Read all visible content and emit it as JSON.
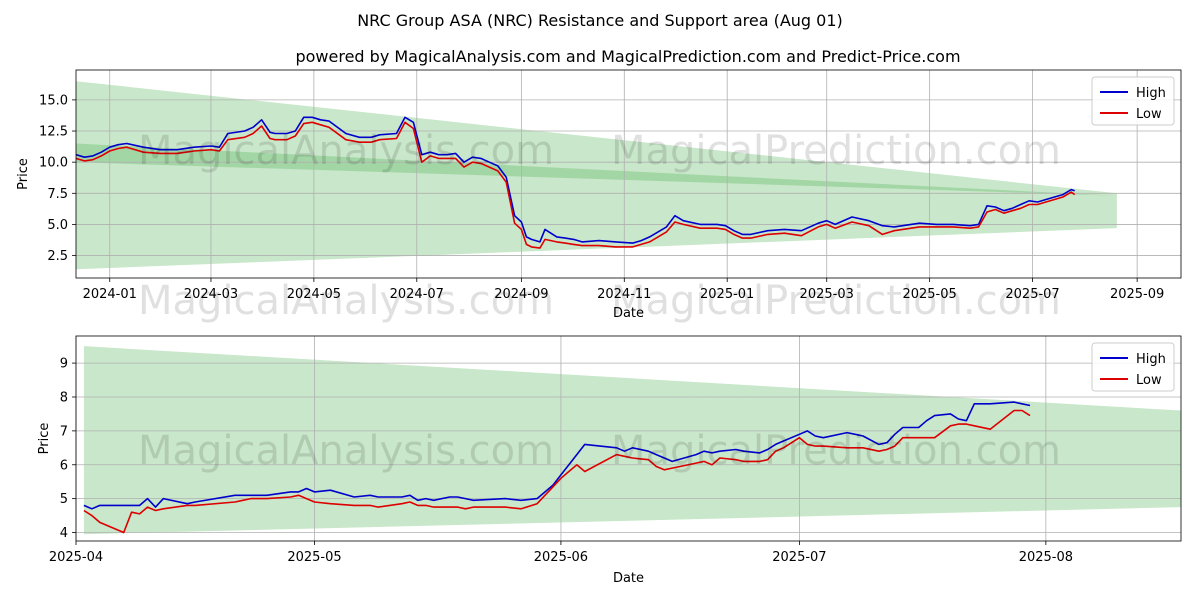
{
  "header": {
    "title": "NRC Group ASA (NRC) Resistance and Support area (Aug 01)",
    "subtitle": "powered by MagicalAnalysis.com and MagicalPrediction.com and Predict-Price.com"
  },
  "watermarks": [
    "MagicalAnalysis.com",
    "MagicalPrediction.com"
  ],
  "colors": {
    "high": "#0000cc",
    "low": "#dd0000",
    "band": "#4caf50",
    "grid": "#b0b0b0"
  },
  "chart_data": [
    {
      "type": "line",
      "id": "top",
      "xlabel": "Date",
      "ylabel": "Price",
      "xlim": [
        0,
        655
      ],
      "ylim": [
        0.7,
        17.4
      ],
      "grid": true,
      "legend": {
        "position": "top-right",
        "entries": [
          "High",
          "Low"
        ]
      },
      "xticks": [
        {
          "label": "2024-01",
          "pos": 20
        },
        {
          "label": "2024-03",
          "pos": 80
        },
        {
          "label": "2024-05",
          "pos": 141
        },
        {
          "label": "2024-07",
          "pos": 202
        },
        {
          "label": "2024-09",
          "pos": 264
        },
        {
          "label": "2024-11",
          "pos": 325
        },
        {
          "label": "2025-01",
          "pos": 386
        },
        {
          "label": "2025-03",
          "pos": 445
        },
        {
          "label": "2025-05",
          "pos": 506
        },
        {
          "label": "2025-07",
          "pos": 567
        },
        {
          "label": "2025-09",
          "pos": 629
        }
      ],
      "yticks": [
        2.5,
        5.0,
        7.5,
        10.0,
        12.5,
        15.0
      ],
      "bands": [
        {
          "x": [
            0,
            617
          ],
          "top": [
            16.5,
            7.5
          ],
          "bottom": [
            10.0,
            7.3
          ]
        },
        {
          "x": [
            0,
            617
          ],
          "top": [
            11.5,
            7.3
          ],
          "bottom": [
            1.4,
            4.7
          ]
        }
      ],
      "series": [
        {
          "name": "High",
          "x": [
            0,
            5,
            10,
            15,
            20,
            25,
            30,
            40,
            50,
            55,
            60,
            70,
            80,
            85,
            90,
            100,
            105,
            110,
            115,
            118,
            125,
            130,
            135,
            140,
            145,
            150,
            160,
            168,
            175,
            180,
            190,
            195,
            200,
            205,
            210,
            215,
            220,
            225,
            230,
            235,
            240,
            245,
            250,
            255,
            260,
            264,
            267,
            270,
            275,
            278,
            285,
            290,
            295,
            300,
            310,
            320,
            330,
            335,
            340,
            350,
            355,
            360,
            370,
            380,
            385,
            390,
            395,
            400,
            410,
            420,
            430,
            440,
            445,
            450,
            460,
            470,
            478,
            485,
            490,
            500,
            510,
            520,
            530,
            535,
            540,
            545,
            550,
            555,
            560,
            565,
            570,
            575,
            580,
            585,
            590,
            592
          ],
          "values": [
            10.6,
            10.4,
            10.5,
            10.8,
            11.2,
            11.4,
            11.5,
            11.2,
            11.0,
            11.0,
            11.0,
            11.2,
            11.3,
            11.2,
            12.3,
            12.5,
            12.8,
            13.4,
            12.4,
            12.3,
            12.3,
            12.5,
            13.6,
            13.6,
            13.4,
            13.3,
            12.3,
            12.0,
            12.0,
            12.2,
            12.3,
            13.6,
            13.2,
            10.6,
            10.8,
            10.6,
            10.6,
            10.7,
            10.0,
            10.4,
            10.3,
            10.0,
            9.7,
            8.8,
            5.7,
            5.2,
            4.0,
            3.8,
            3.6,
            4.6,
            4.0,
            3.9,
            3.8,
            3.6,
            3.7,
            3.6,
            3.5,
            3.7,
            4.0,
            4.8,
            5.7,
            5.3,
            5.0,
            5.0,
            4.9,
            4.5,
            4.2,
            4.2,
            4.5,
            4.6,
            4.5,
            5.1,
            5.3,
            5.0,
            5.6,
            5.3,
            4.9,
            4.8,
            4.9,
            5.1,
            5.0,
            5.0,
            4.9,
            5.0,
            6.5,
            6.4,
            6.1,
            6.3,
            6.6,
            6.9,
            6.8,
            7.0,
            7.2,
            7.4,
            7.8,
            7.7
          ]
        },
        {
          "name": "Low",
          "x": [
            0,
            5,
            10,
            15,
            20,
            25,
            30,
            40,
            50,
            55,
            60,
            70,
            80,
            85,
            90,
            100,
            105,
            110,
            115,
            118,
            125,
            130,
            135,
            140,
            145,
            150,
            160,
            168,
            175,
            180,
            190,
            195,
            200,
            205,
            210,
            215,
            220,
            225,
            230,
            235,
            240,
            245,
            250,
            255,
            260,
            264,
            267,
            270,
            275,
            278,
            285,
            290,
            295,
            300,
            310,
            320,
            330,
            335,
            340,
            350,
            355,
            360,
            370,
            380,
            385,
            390,
            395,
            400,
            410,
            420,
            430,
            440,
            445,
            450,
            460,
            470,
            478,
            485,
            490,
            500,
            510,
            520,
            530,
            535,
            540,
            545,
            550,
            555,
            560,
            565,
            570,
            575,
            580,
            585,
            590,
            592
          ],
          "values": [
            10.3,
            10.1,
            10.2,
            10.5,
            10.9,
            11.1,
            11.2,
            10.8,
            10.7,
            10.7,
            10.7,
            10.9,
            11.0,
            10.9,
            11.8,
            12.0,
            12.3,
            12.9,
            11.9,
            11.8,
            11.8,
            12.1,
            13.1,
            13.2,
            13.0,
            12.8,
            11.8,
            11.6,
            11.6,
            11.8,
            11.9,
            13.2,
            12.7,
            10.0,
            10.5,
            10.3,
            10.3,
            10.3,
            9.6,
            10.0,
            9.9,
            9.6,
            9.3,
            8.4,
            5.1,
            4.6,
            3.4,
            3.2,
            3.1,
            3.8,
            3.6,
            3.5,
            3.4,
            3.3,
            3.3,
            3.2,
            3.2,
            3.4,
            3.6,
            4.4,
            5.2,
            5.0,
            4.7,
            4.7,
            4.6,
            4.2,
            3.9,
            3.9,
            4.2,
            4.3,
            4.1,
            4.8,
            5.0,
            4.7,
            5.2,
            4.9,
            4.2,
            4.5,
            4.6,
            4.8,
            4.8,
            4.8,
            4.7,
            4.8,
            6.0,
            6.2,
            5.9,
            6.1,
            6.3,
            6.6,
            6.6,
            6.8,
            7.0,
            7.2,
            7.6,
            7.4
          ]
        }
      ]
    },
    {
      "type": "line",
      "id": "bottom",
      "xlabel": "Date",
      "ylabel": "Price",
      "xlim": [
        0,
        139
      ],
      "ylim": [
        3.75,
        9.8
      ],
      "grid": true,
      "legend": {
        "position": "top-right",
        "entries": [
          "High",
          "Low"
        ]
      },
      "xticks": [
        {
          "label": "2025-04",
          "pos": 0
        },
        {
          "label": "2025-05",
          "pos": 30
        },
        {
          "label": "2025-06",
          "pos": 61
        },
        {
          "label": "2025-07",
          "pos": 91
        },
        {
          "label": "2025-08",
          "pos": 122
        }
      ],
      "yticks": [
        4,
        5,
        6,
        7,
        8,
        9
      ],
      "bands": [
        {
          "x": [
            1,
            139
          ],
          "top": [
            9.5,
            7.6
          ],
          "bottom": [
            8.7,
            7.4
          ]
        },
        {
          "x": [
            1,
            139
          ],
          "top": [
            8.7,
            7.4
          ],
          "bottom": [
            3.95,
            4.75
          ]
        }
      ],
      "series": [
        {
          "name": "High",
          "x": [
            1,
            2,
            3,
            5,
            6,
            7,
            8,
            9,
            10,
            11,
            14,
            15,
            20,
            21,
            22,
            24,
            27,
            28,
            29,
            30,
            32,
            35,
            37,
            38,
            41,
            42,
            43,
            44,
            45,
            47,
            48,
            49,
            50,
            54,
            56,
            58,
            60,
            61,
            62,
            63,
            64,
            68,
            69,
            70,
            72,
            73,
            74,
            75,
            78,
            79,
            80,
            81,
            83,
            84,
            86,
            87,
            88,
            89,
            91,
            92,
            93,
            94,
            97,
            98,
            99,
            101,
            102,
            103,
            104,
            106,
            107,
            108,
            110,
            111,
            112,
            113,
            115,
            118,
            119,
            120
          ],
          "values": [
            4.8,
            4.7,
            4.8,
            4.8,
            4.8,
            4.8,
            4.8,
            5.0,
            4.75,
            5.0,
            4.85,
            4.9,
            5.1,
            5.1,
            5.1,
            5.1,
            5.2,
            5.2,
            5.3,
            5.2,
            5.25,
            5.05,
            5.1,
            5.05,
            5.05,
            5.1,
            4.95,
            5.0,
            4.95,
            5.05,
            5.05,
            5.0,
            4.95,
            5.0,
            4.95,
            5.0,
            5.4,
            5.7,
            6.0,
            6.3,
            6.6,
            6.5,
            6.4,
            6.5,
            6.4,
            6.3,
            6.2,
            6.1,
            6.3,
            6.4,
            6.35,
            6.4,
            6.45,
            6.4,
            6.35,
            6.45,
            6.6,
            6.7,
            6.9,
            7.0,
            6.85,
            6.8,
            6.95,
            6.9,
            6.85,
            6.6,
            6.65,
            6.9,
            7.1,
            7.1,
            7.3,
            7.45,
            7.5,
            7.35,
            7.3,
            7.8,
            7.8,
            7.85,
            7.8,
            7.75
          ]
        },
        {
          "name": "Low",
          "x": [
            1,
            2,
            3,
            5,
            6,
            7,
            8,
            9,
            10,
            11,
            14,
            15,
            20,
            21,
            22,
            24,
            27,
            28,
            29,
            30,
            32,
            35,
            37,
            38,
            41,
            42,
            43,
            44,
            45,
            47,
            48,
            49,
            50,
            54,
            56,
            58,
            60,
            61,
            62,
            63,
            64,
            68,
            69,
            70,
            72,
            73,
            74,
            75,
            78,
            79,
            80,
            81,
            83,
            84,
            86,
            87,
            88,
            89,
            91,
            92,
            93,
            94,
            97,
            98,
            99,
            101,
            102,
            103,
            104,
            106,
            107,
            108,
            110,
            111,
            112,
            113,
            115,
            118,
            119,
            120
          ],
          "values": [
            4.65,
            4.5,
            4.3,
            4.1,
            4.0,
            4.6,
            4.55,
            4.75,
            4.65,
            4.7,
            4.8,
            4.8,
            4.9,
            4.95,
            5.0,
            5.0,
            5.05,
            5.1,
            5.0,
            4.9,
            4.85,
            4.8,
            4.8,
            4.75,
            4.85,
            4.9,
            4.8,
            4.8,
            4.75,
            4.75,
            4.75,
            4.7,
            4.75,
            4.75,
            4.7,
            4.85,
            5.35,
            5.6,
            5.8,
            6.0,
            5.8,
            6.3,
            6.25,
            6.2,
            6.15,
            5.95,
            5.85,
            5.9,
            6.05,
            6.1,
            6.0,
            6.2,
            6.15,
            6.1,
            6.1,
            6.15,
            6.4,
            6.5,
            6.8,
            6.6,
            6.55,
            6.55,
            6.5,
            6.5,
            6.5,
            6.4,
            6.45,
            6.55,
            6.8,
            6.8,
            6.8,
            6.8,
            7.15,
            7.2,
            7.2,
            7.15,
            7.05,
            7.6,
            7.6,
            7.45
          ]
        }
      ]
    }
  ]
}
